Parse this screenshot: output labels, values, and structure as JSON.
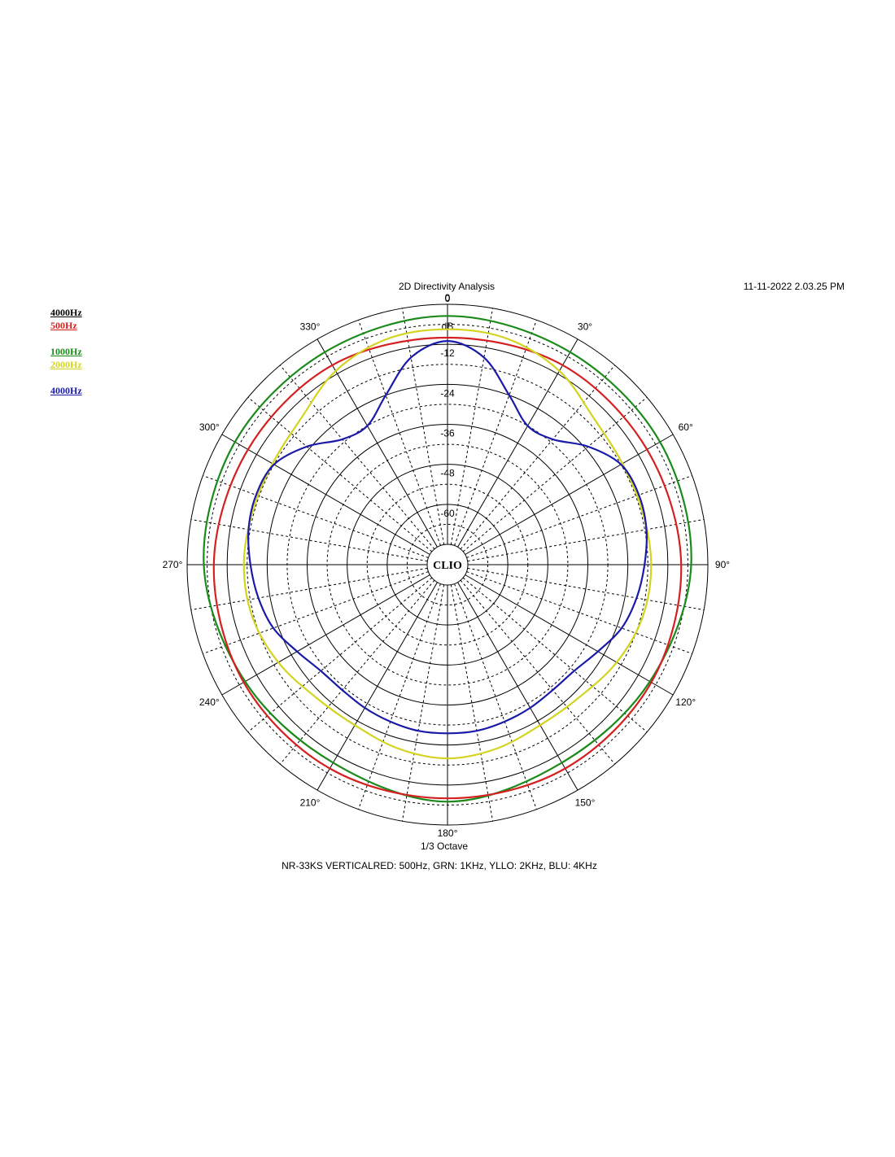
{
  "header": {
    "title": "2D Directivity Analysis",
    "timestamp": "11-11-2022 2.03.25 PM"
  },
  "legend": [
    {
      "label": "4000Hz",
      "color": "#000000"
    },
    {
      "label": "500Hz",
      "color": "#d42020"
    },
    {
      "label": "1000Hz",
      "color": "#1a8a1a"
    },
    {
      "label": "2000Hz",
      "color": "#d4d420"
    },
    {
      "label": "4000Hz",
      "color": "#1a1aa8"
    }
  ],
  "footer": {
    "smoothing": "1/3 Octave",
    "caption": "NR-33KS VERTICALRED: 500Hz, GRN: 1KHz, YLLO: 2KHz, BLU: 4KHz"
  },
  "logo_text": "CLIO",
  "chart_data": {
    "type": "polar",
    "title": "2D Directivity Analysis",
    "radial_unit": "dB",
    "radial_range": [
      -72,
      0
    ],
    "radial_ticks": [
      "0",
      "-12",
      "-24",
      "-36",
      "-48",
      "-60"
    ],
    "angle_ticks": [
      "0",
      "30°",
      "60°",
      "90°",
      "120°",
      "150°",
      "180°",
      "210°",
      "240°",
      "270°",
      "300°",
      "330°"
    ],
    "series": [
      {
        "color": "#1a8a1a",
        "angles": [
          0,
          30,
          60,
          90,
          120,
          150,
          180,
          210,
          240,
          270,
          300,
          330,
          360
        ],
        "values": [
          -3.5,
          -4.5,
          -4.5,
          -5,
          -8,
          -9.5,
          -7,
          -9.5,
          -8,
          -5,
          -4.5,
          -4.5,
          -3.5
        ]
      },
      {
        "color": "#d42020",
        "angles": [
          0,
          30,
          60,
          90,
          120,
          150,
          180,
          210,
          240,
          270,
          300,
          330,
          360
        ],
        "values": [
          -10,
          -9,
          -9,
          -8,
          -7.5,
          -7.5,
          -8,
          -7.5,
          -7.5,
          -8,
          -9,
          -9,
          -10
        ]
      },
      {
        "color": "#d4d420",
        "angles": [
          0,
          15,
          30,
          45,
          60,
          75,
          90,
          105,
          120,
          135,
          150,
          165,
          180,
          195,
          210,
          225,
          240,
          255,
          270,
          285,
          300,
          315,
          330,
          345,
          360
        ],
        "values": [
          -7.5,
          -8,
          -11,
          -16,
          -17.5,
          -17.5,
          -17,
          -17.5,
          -19.5,
          -22,
          -22.5,
          -21,
          -20,
          -21,
          -22.5,
          -22,
          -19.5,
          -17.5,
          -17,
          -17.5,
          -17.5,
          -16,
          -11,
          -8,
          -7.5
        ]
      },
      {
        "color": "#1a1aa8",
        "angles": [
          0,
          10,
          20,
          30,
          40,
          50,
          60,
          70,
          80,
          90,
          100,
          110,
          120,
          130,
          140,
          150,
          160,
          170,
          180,
          190,
          200,
          210,
          220,
          230,
          240,
          250,
          260,
          270,
          280,
          290,
          300,
          310,
          320,
          330,
          340,
          350,
          360
        ],
        "values": [
          -11,
          -15,
          -24,
          -30,
          -29,
          -23,
          -18,
          -17,
          -17.5,
          -19,
          -20.5,
          -22.5,
          -26,
          -28.5,
          -29,
          -28.5,
          -28,
          -27.5,
          -27.5,
          -27.5,
          -28,
          -28.5,
          -29,
          -28.5,
          -26,
          -22.5,
          -20.5,
          -19,
          -17.5,
          -17,
          -18,
          -23,
          -29,
          -30,
          -24,
          -15,
          -11
        ]
      }
    ]
  }
}
